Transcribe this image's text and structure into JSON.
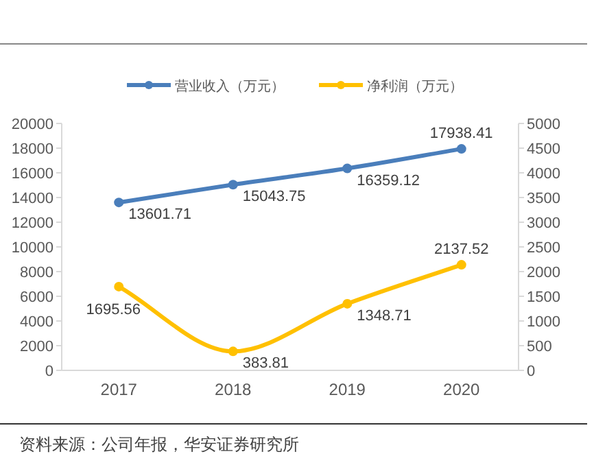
{
  "chart_data": {
    "type": "line",
    "categories": [
      "2017",
      "2018",
      "2019",
      "2020"
    ],
    "series": [
      {
        "name": "营业收入（万元）",
        "color": "#4a7ebb",
        "values": [
          13601.71,
          15043.75,
          16359.12,
          17938.41
        ]
      },
      {
        "name": "净利润（万元）",
        "color": "#ffc000",
        "values": [
          1695.56,
          383.81,
          1348.71,
          2137.52
        ],
        "axis": "y2"
      }
    ],
    "ylim": [
      0,
      20000
    ],
    "yticks": [
      0,
      2000,
      4000,
      6000,
      8000,
      10000,
      12000,
      14000,
      16000,
      18000,
      20000
    ],
    "y2lim": [
      0,
      5000
    ],
    "y2ticks": [
      0,
      500,
      1000,
      1500,
      2000,
      2500,
      3000,
      3500,
      4000,
      4500,
      5000
    ],
    "data_labels": true,
    "marker": "circle",
    "line_style": "solid",
    "legend": "top",
    "grid": false,
    "annotations": [
      "资料来源：公司年报，华安证券研究所"
    ]
  }
}
